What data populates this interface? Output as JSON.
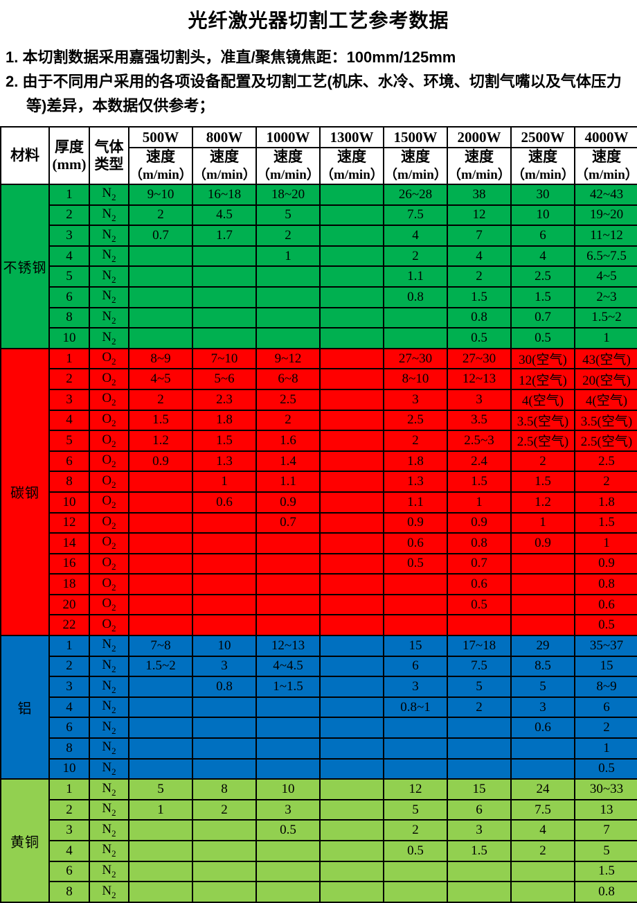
{
  "title": "光纤激光器切割工艺参考数据",
  "notes": [
    "1. 本切割数据采用嘉强切割头，准直/聚焦镜焦距：100mm/125mm",
    "2. 由于不同用户采用的各项设备配置及切割工艺(机床、水冷、环境、切割气嘴以及气体压力等)差异，本数据仅供参考；"
  ],
  "table": {
    "header": {
      "material": "材料",
      "thickness_label": "厚度",
      "thickness_unit": "(mm)",
      "gas_line1": "气体",
      "gas_line2": "类型",
      "powers": [
        "500W",
        "800W",
        "1000W",
        "1300W",
        "1500W",
        "2000W",
        "2500W",
        "4000W"
      ],
      "speed_label": "速度",
      "speed_unit": "（m/min）"
    },
    "sections": [
      {
        "material": "不锈钢",
        "color": "#00B050",
        "rows": [
          {
            "thickness": "1",
            "gas": "N2",
            "speeds": [
              "9~10",
              "16~18",
              "18~20",
              "",
              "26~28",
              "38",
              "30",
              "42~43"
            ]
          },
          {
            "thickness": "2",
            "gas": "N2",
            "speeds": [
              "2",
              "4.5",
              "5",
              "",
              "7.5",
              "12",
              "10",
              "19~20"
            ]
          },
          {
            "thickness": "3",
            "gas": "N2",
            "speeds": [
              "0.7",
              "1.7",
              "2",
              "",
              "4",
              "7",
              "6",
              "11~12"
            ]
          },
          {
            "thickness": "4",
            "gas": "N2",
            "speeds": [
              "",
              "",
              "1",
              "",
              "2",
              "4",
              "4",
              "6.5~7.5"
            ]
          },
          {
            "thickness": "5",
            "gas": "N2",
            "speeds": [
              "",
              "",
              "",
              "",
              "1.1",
              "2",
              "2.5",
              "4~5"
            ]
          },
          {
            "thickness": "6",
            "gas": "N2",
            "speeds": [
              "",
              "",
              "",
              "",
              "0.8",
              "1.5",
              "1.5",
              "2~3"
            ]
          },
          {
            "thickness": "8",
            "gas": "N2",
            "speeds": [
              "",
              "",
              "",
              "",
              "",
              "0.8",
              "0.7",
              "1.5~2"
            ]
          },
          {
            "thickness": "10",
            "gas": "N2",
            "speeds": [
              "",
              "",
              "",
              "",
              "",
              "0.5",
              "0.5",
              "1"
            ]
          }
        ]
      },
      {
        "material": "碳钢",
        "color": "#FF0000",
        "rows": [
          {
            "thickness": "1",
            "gas": "O2",
            "speeds": [
              "8~9",
              "7~10",
              "9~12",
              "",
              "27~30",
              "27~30",
              "30(空气)",
              "43(空气)"
            ]
          },
          {
            "thickness": "2",
            "gas": "O2",
            "speeds": [
              "4~5",
              "5~6",
              "6~8",
              "",
              "8~10",
              "12~13",
              "12(空气)",
              "20(空气)"
            ]
          },
          {
            "thickness": "3",
            "gas": "O2",
            "speeds": [
              "2",
              "2.3",
              "2.5",
              "",
              "3",
              "3",
              "4(空气)",
              "4(空气)"
            ]
          },
          {
            "thickness": "4",
            "gas": "O2",
            "speeds": [
              "1.5",
              "1.8",
              "2",
              "",
              "2.5",
              "3.5",
              "3.5(空气)",
              "3.5(空气)"
            ]
          },
          {
            "thickness": "5",
            "gas": "O2",
            "speeds": [
              "1.2",
              "1.5",
              "1.6",
              "",
              "2",
              "2.5~3",
              "2.5(空气)",
              "2.5(空气)"
            ]
          },
          {
            "thickness": "6",
            "gas": "O2",
            "speeds": [
              "0.9",
              "1.3",
              "1.4",
              "",
              "1.8",
              "2.4",
              "2",
              "2.5"
            ]
          },
          {
            "thickness": "8",
            "gas": "O2",
            "speeds": [
              "",
              "1",
              "1.1",
              "",
              "1.3",
              "1.5",
              "1.5",
              "2"
            ]
          },
          {
            "thickness": "10",
            "gas": "O2",
            "speeds": [
              "",
              "0.6",
              "0.9",
              "",
              "1.1",
              "1",
              "1.2",
              "1.8"
            ]
          },
          {
            "thickness": "12",
            "gas": "O2",
            "speeds": [
              "",
              "",
              "0.7",
              "",
              "0.9",
              "0.9",
              "1",
              "1.5"
            ]
          },
          {
            "thickness": "14",
            "gas": "O2",
            "speeds": [
              "",
              "",
              "",
              "",
              "0.6",
              "0.8",
              "0.9",
              "1"
            ]
          },
          {
            "thickness": "16",
            "gas": "O2",
            "speeds": [
              "",
              "",
              "",
              "",
              "0.5",
              "0.7",
              "",
              "0.9"
            ]
          },
          {
            "thickness": "18",
            "gas": "O2",
            "speeds": [
              "",
              "",
              "",
              "",
              "",
              "0.6",
              "",
              "0.8"
            ]
          },
          {
            "thickness": "20",
            "gas": "O2",
            "speeds": [
              "",
              "",
              "",
              "",
              "",
              "0.5",
              "",
              "0.6"
            ]
          },
          {
            "thickness": "22",
            "gas": "O2",
            "speeds": [
              "",
              "",
              "",
              "",
              "",
              "",
              "",
              "0.5"
            ]
          }
        ]
      },
      {
        "material": "铝",
        "color": "#0070C0",
        "rows": [
          {
            "thickness": "1",
            "gas": "N2",
            "speeds": [
              "7~8",
              "10",
              "12~13",
              "",
              "15",
              "17~18",
              "29",
              "35~37"
            ]
          },
          {
            "thickness": "2",
            "gas": "N2",
            "speeds": [
              "1.5~2",
              "3",
              "4~4.5",
              "",
              "6",
              "7.5",
              "8.5",
              "15"
            ]
          },
          {
            "thickness": "3",
            "gas": "N2",
            "speeds": [
              "",
              "0.8",
              "1~1.5",
              "",
              "3",
              "5",
              "5",
              "8~9"
            ]
          },
          {
            "thickness": "4",
            "gas": "N2",
            "speeds": [
              "",
              "",
              "",
              "",
              "0.8~1",
              "2",
              "3",
              "6"
            ]
          },
          {
            "thickness": "6",
            "gas": "N2",
            "speeds": [
              "",
              "",
              "",
              "",
              "",
              "",
              "0.6",
              "2"
            ]
          },
          {
            "thickness": "8",
            "gas": "N2",
            "speeds": [
              "",
              "",
              "",
              "",
              "",
              "",
              "",
              "1"
            ]
          },
          {
            "thickness": "10",
            "gas": "N2",
            "speeds": [
              "",
              "",
              "",
              "",
              "",
              "",
              "",
              "0.5"
            ]
          }
        ]
      },
      {
        "material": "黄铜",
        "color": "#92D050",
        "rows": [
          {
            "thickness": "1",
            "gas": "N2",
            "speeds": [
              "5",
              "8",
              "10",
              "",
              "12",
              "15",
              "24",
              "30~33"
            ]
          },
          {
            "thickness": "2",
            "gas": "N2",
            "speeds": [
              "1",
              "2",
              "3",
              "",
              "5",
              "6",
              "7.5",
              "13"
            ]
          },
          {
            "thickness": "3",
            "gas": "N2",
            "speeds": [
              "",
              "",
              "0.5",
              "",
              "2",
              "3",
              "4",
              "7"
            ]
          },
          {
            "thickness": "4",
            "gas": "N2",
            "speeds": [
              "",
              "",
              "",
              "",
              "0.5",
              "1.5",
              "2",
              "5"
            ]
          },
          {
            "thickness": "6",
            "gas": "N2",
            "speeds": [
              "",
              "",
              "",
              "",
              "",
              "",
              "",
              "1.5"
            ]
          },
          {
            "thickness": "8",
            "gas": "N2",
            "speeds": [
              "",
              "",
              "",
              "",
              "",
              "",
              "",
              "0.8"
            ]
          }
        ]
      }
    ]
  }
}
